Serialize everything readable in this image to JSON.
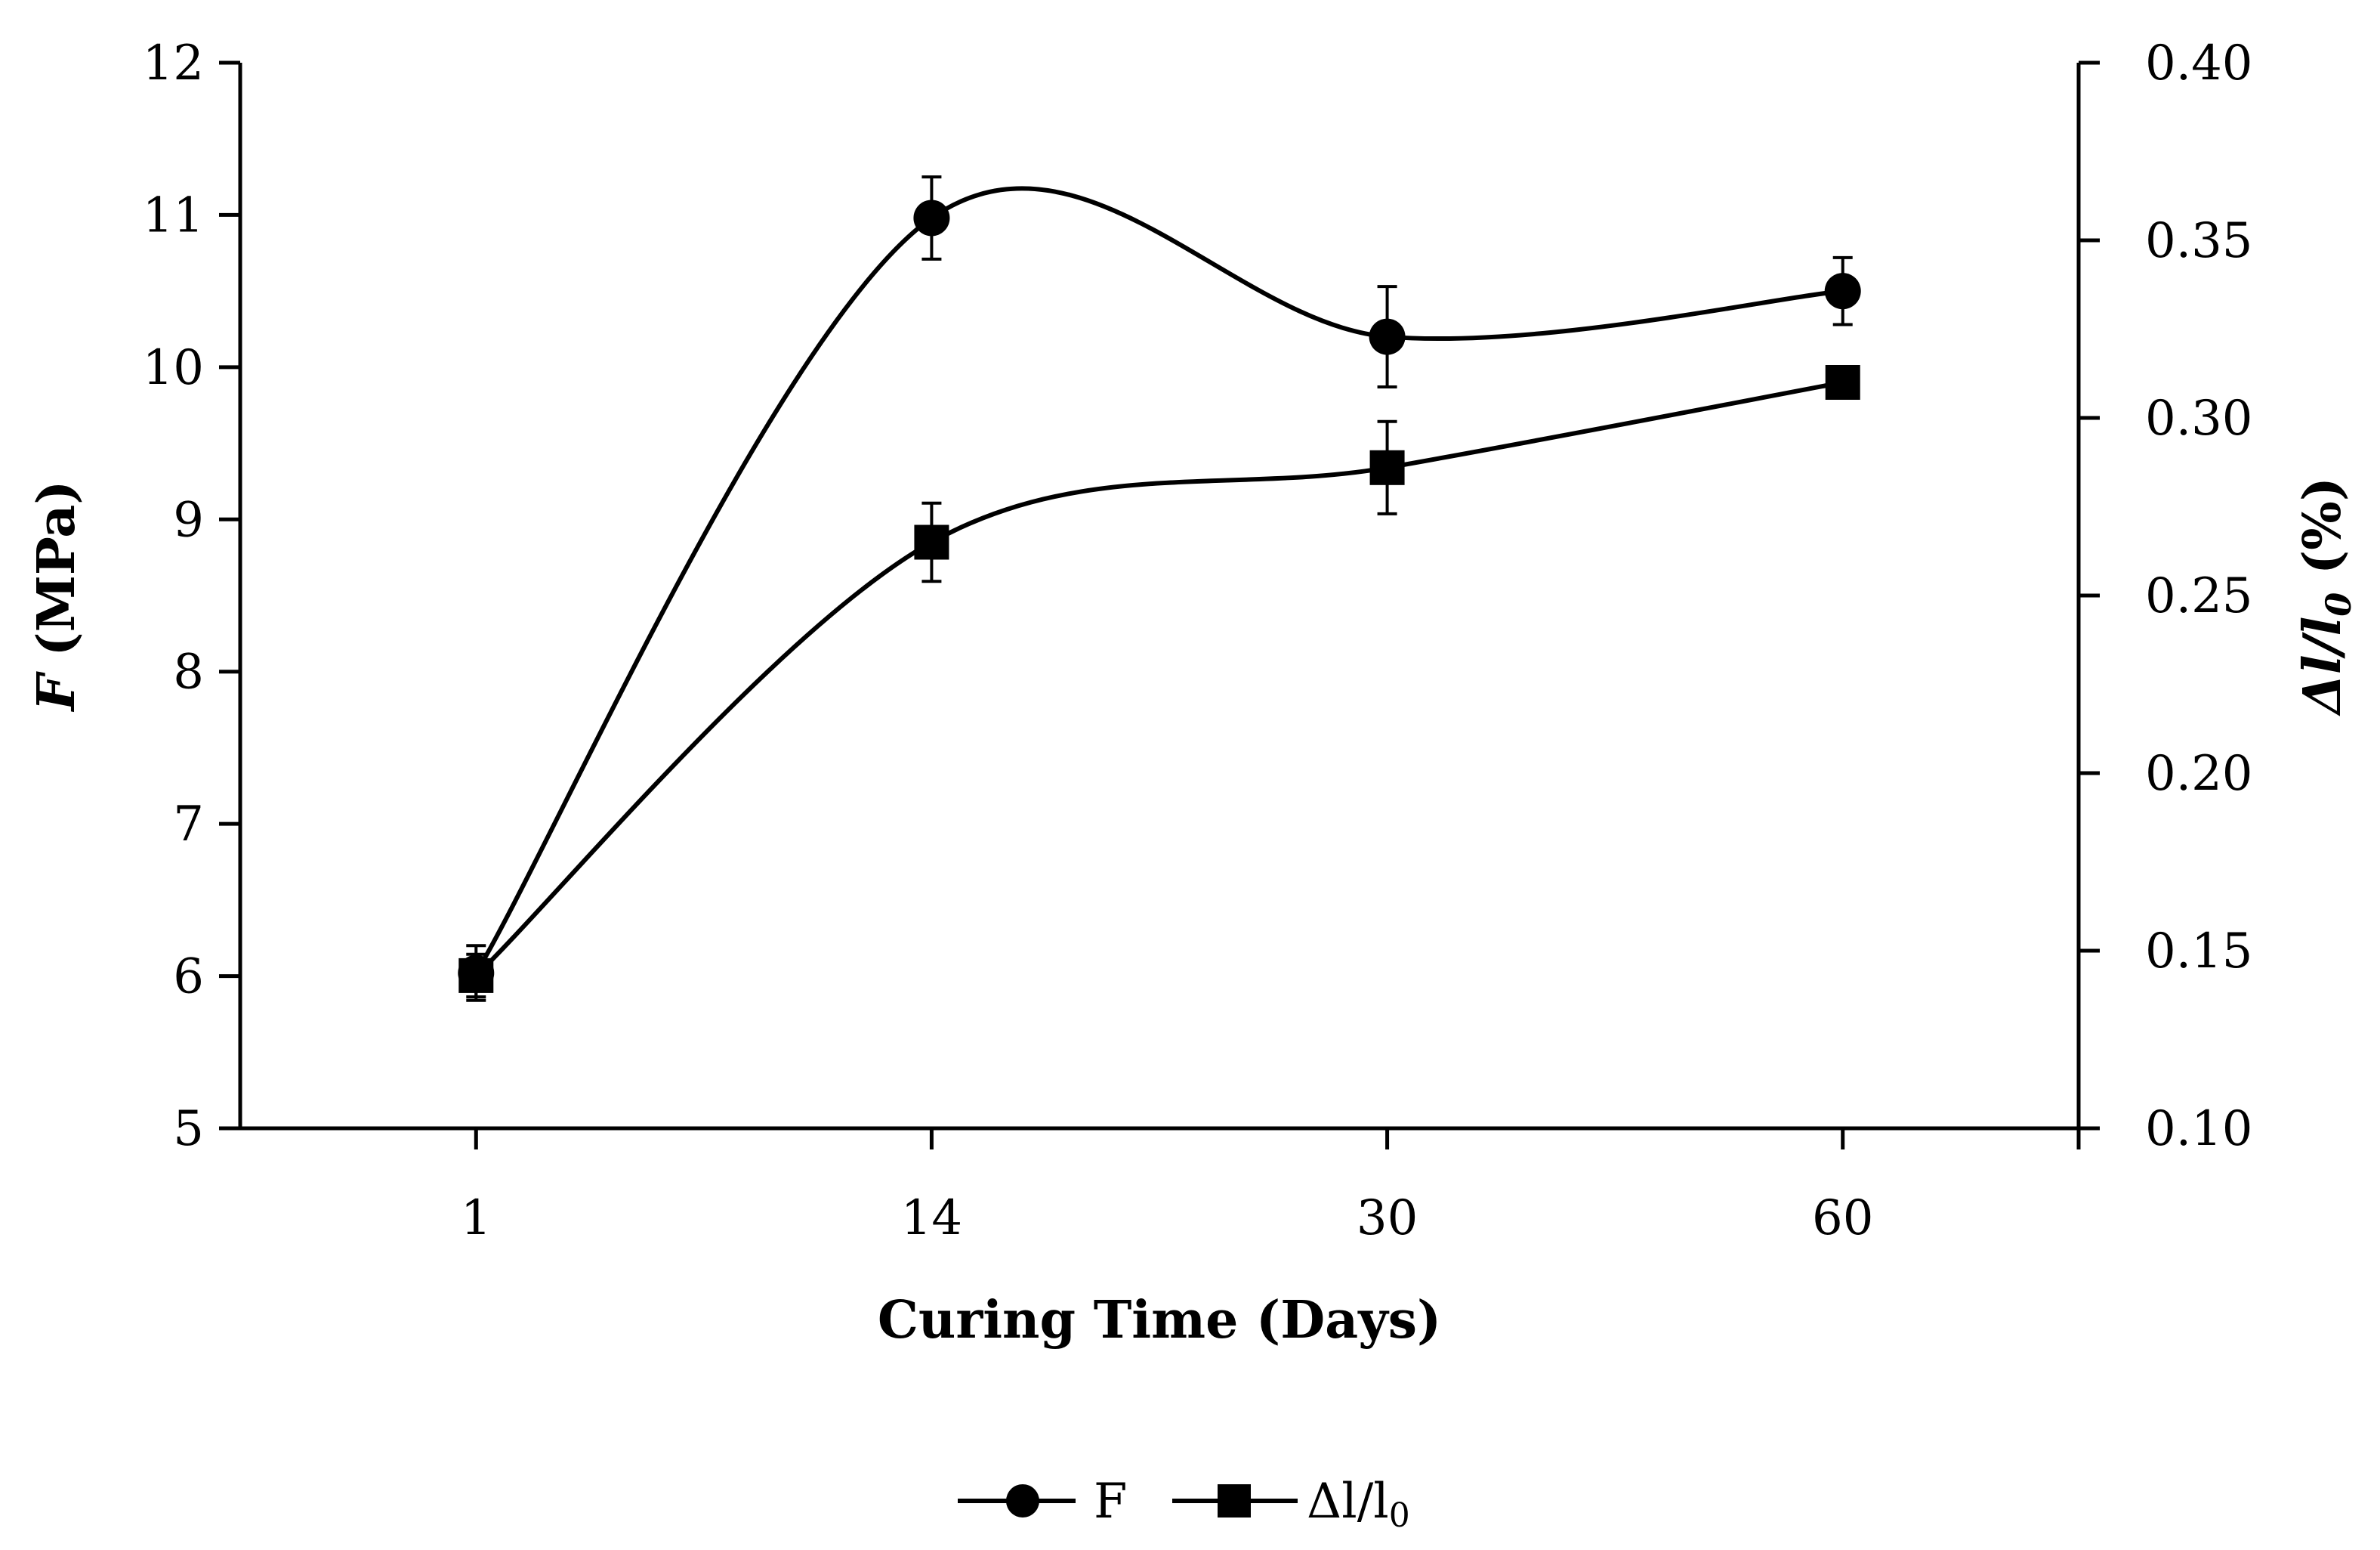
{
  "chart_data": {
    "type": "line",
    "categories": [
      "1",
      "14",
      "30",
      "60"
    ],
    "xlabel": "Curing Time (Days)",
    "y_left": {
      "label_italic": "F",
      "label_rest": " (MPa)",
      "ylim": [
        5,
        12
      ],
      "ticks": [
        "5",
        "6",
        "7",
        "8",
        "9",
        "10",
        "11",
        "12"
      ]
    },
    "y_right": {
      "label_italic": "Δl/l",
      "label_sub": "0",
      "label_rest": " (%)",
      "ylim": [
        0.1,
        0.4
      ],
      "ticks": [
        "0.10",
        "0.15",
        "0.20",
        "0.25",
        "0.30",
        "0.35",
        "0.40"
      ]
    },
    "series": [
      {
        "name": "F",
        "axis": "left",
        "marker": "circle",
        "values": [
          6.02,
          10.98,
          10.2,
          10.5
        ],
        "errors": [
          0.18,
          0.27,
          0.33,
          0.22
        ]
      },
      {
        "name": "Δl/l",
        "name_sub": "0",
        "axis": "right",
        "marker": "square",
        "values": [
          0.143,
          0.265,
          0.286,
          0.31
        ],
        "errors": [
          0.006,
          0.011,
          0.013,
          0.004
        ]
      }
    ]
  }
}
